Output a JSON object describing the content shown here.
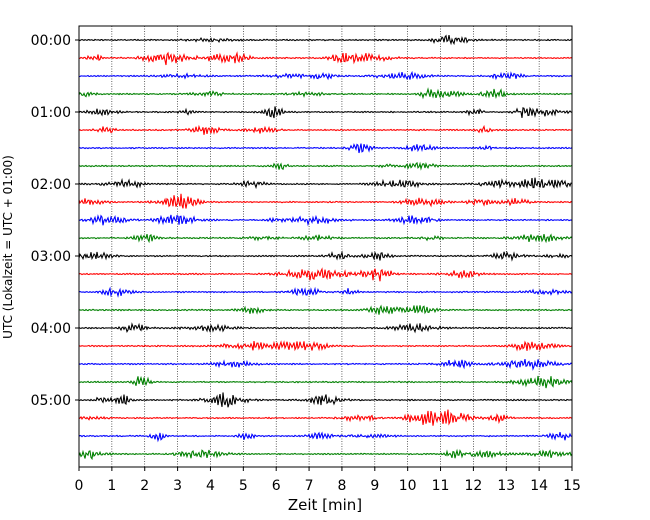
{
  "chart_data": {
    "type": "line",
    "subtype": "helicorder",
    "title": "",
    "xlabel": "Zeit  [min]",
    "ylabel": "UTC (Lokalzeit = UTC + 01:00)",
    "xlim": [
      0,
      15
    ],
    "x_ticks": [
      "0",
      "1",
      "2",
      "3",
      "4",
      "5",
      "6",
      "7",
      "8",
      "9",
      "10",
      "11",
      "12",
      "13",
      "14",
      "15"
    ],
    "y_tick_labels": [
      "00:00",
      "01:00",
      "02:00",
      "03:00",
      "04:00",
      "05:00"
    ],
    "traces_per_hour": 4,
    "trace_count": 24,
    "trace_colors": [
      "#000000",
      "#ff0000",
      "#0000ff",
      "#008000"
    ],
    "grid": "vertical dotted at every minute"
  }
}
